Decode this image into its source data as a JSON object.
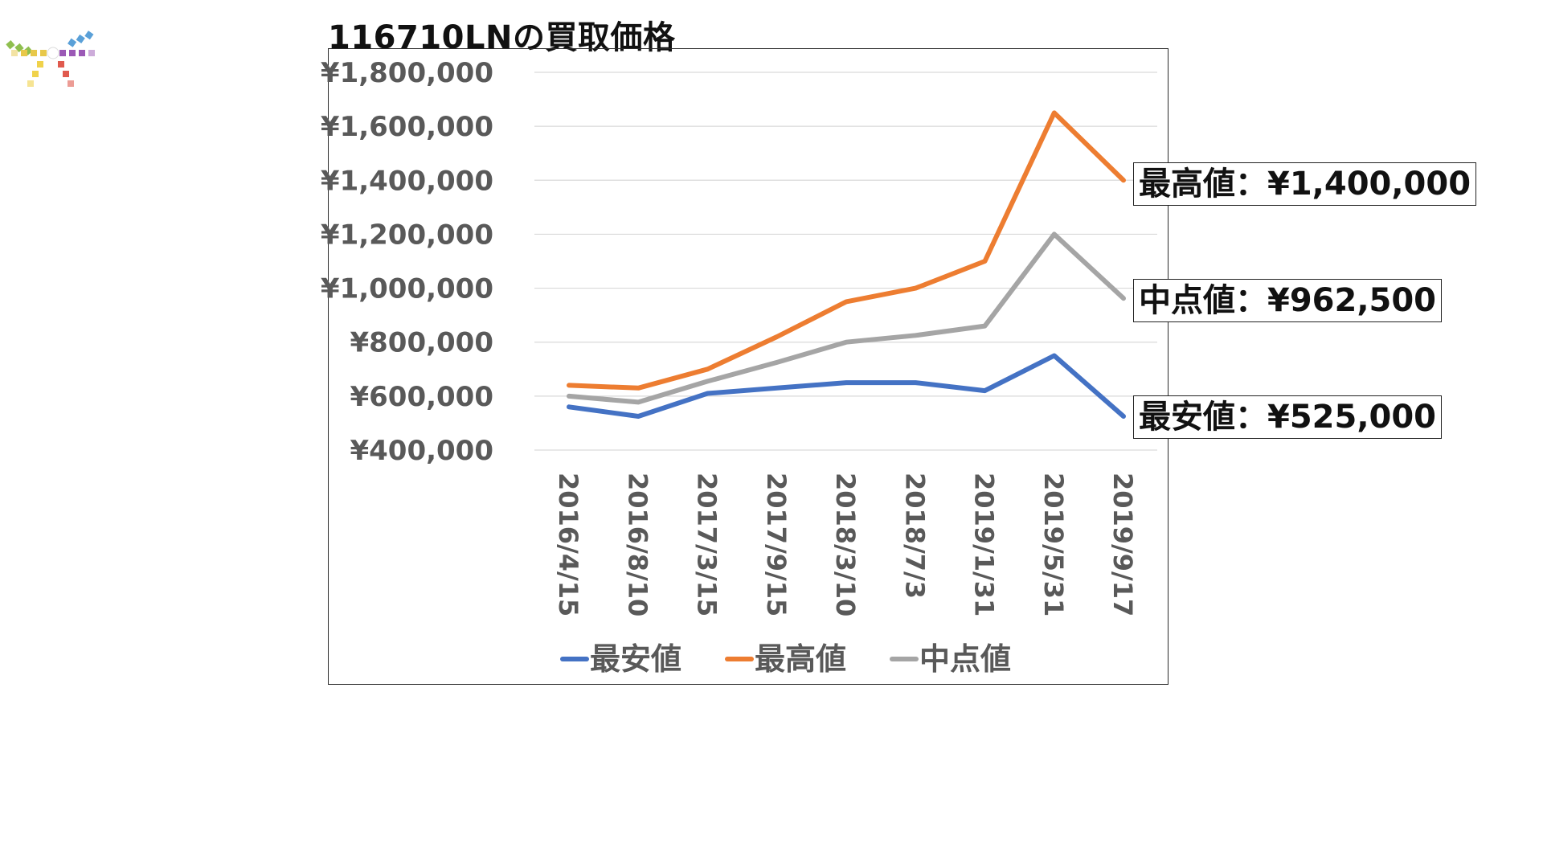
{
  "title": "116710LNの買取価格",
  "colors": {
    "min": "#4472c4",
    "max": "#ed7d31",
    "mid": "#a5a5a5",
    "grid": "#d9d9d9",
    "text": "#595959"
  },
  "callouts": {
    "max": "最高値：¥1,400,000",
    "mid": "中点値：¥962,500",
    "min": "最安値：¥525,000"
  },
  "chart_data": {
    "type": "line",
    "title": "",
    "categories": [
      "2016/4/15",
      "2016/8/10",
      "2017/3/15",
      "2017/9/15",
      "2018/3/10",
      "2018/7/3",
      "2019/1/31",
      "2019/5/31",
      "2019/9/17"
    ],
    "y_tick_labels": [
      "¥1,800,000",
      "¥1,600,000",
      "¥1,400,000",
      "¥1,200,000",
      "¥1,000,000",
      "¥800,000",
      "¥600,000",
      "¥400,000"
    ],
    "ylim": [
      400000,
      1800000
    ],
    "grid": true,
    "legend_position": "bottom",
    "series": [
      {
        "key": "min",
        "name": "最安値",
        "values": [
          560000,
          525000,
          610000,
          630000,
          650000,
          650000,
          620000,
          750000,
          525000
        ]
      },
      {
        "key": "max",
        "name": "最高値",
        "values": [
          640000,
          630000,
          700000,
          820000,
          950000,
          1000000,
          1100000,
          1650000,
          1400000
        ]
      },
      {
        "key": "mid",
        "name": "中点値",
        "values": [
          600000,
          577500,
          655000,
          725000,
          800000,
          825000,
          860000,
          1200000,
          962500
        ]
      }
    ]
  }
}
